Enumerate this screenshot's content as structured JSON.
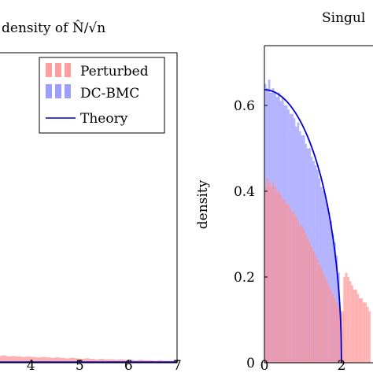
{
  "chart_data": [
    {
      "type": "bar",
      "title": "density of N̂/√n",
      "xlabel": "",
      "ylabel": "",
      "xlim": [
        1.6,
        7.0
      ],
      "ylim": [
        0,
        0.65
      ],
      "x_ticks": [
        "4",
        "5",
        "6",
        "7"
      ],
      "legend": {
        "placement": "top-right",
        "entries": [
          {
            "label": "Perturbed",
            "color": "#ff9e9e"
          },
          {
            "label": "DC-BMC",
            "color": "#9e9eff"
          },
          {
            "label": "Theory",
            "color": "#0000cc"
          }
        ]
      },
      "bin_width": 0.1,
      "series": [
        {
          "name": "Perturbed",
          "x_start": 1.6,
          "values": [
            0.024,
            0.022,
            0.02,
            0.02,
            0.021,
            0.019,
            0.018,
            0.019,
            0.02,
            0.018,
            0.017,
            0.018,
            0.016,
            0.017,
            0.016,
            0.015,
            0.016,
            0.014,
            0.015,
            0.013,
            0.014,
            0.013,
            0.012,
            0.013,
            0.012,
            0.011,
            0.012,
            0.011,
            0.01,
            0.011,
            0.01,
            0.009,
            0.01,
            0.009,
            0.008,
            0.009,
            0.008,
            0.007,
            0.008,
            0.007,
            0.007,
            0.006,
            0.007,
            0.006,
            0.006,
            0.005,
            0.006,
            0.005,
            0.005,
            0.004,
            0.005,
            0.004,
            0.004,
            0.004
          ]
        },
        {
          "name": "Theory",
          "x": [
            1.6,
            7.0
          ],
          "y": [
            0.0,
            0.0
          ]
        }
      ]
    },
    {
      "type": "bar",
      "title": "Singul",
      "xlabel": "",
      "ylabel": "density",
      "xlim": [
        0,
        2.75
      ],
      "ylim": [
        0,
        0.68
      ],
      "x_ticks": [
        "0",
        "2"
      ],
      "y_ticks": [
        "0",
        "0.2",
        "0.4",
        "0.6"
      ],
      "bin_width": 0.05,
      "series": [
        {
          "name": "DC-BMC",
          "x_start": 0.0,
          "values": [
            0.65,
            0.64,
            0.66,
            0.63,
            0.64,
            0.63,
            0.62,
            0.63,
            0.61,
            0.62,
            0.6,
            0.6,
            0.59,
            0.58,
            0.58,
            0.57,
            0.55,
            0.56,
            0.54,
            0.53,
            0.53,
            0.51,
            0.5,
            0.5,
            0.48,
            0.47,
            0.46,
            0.45,
            0.43,
            0.41,
            0.4,
            0.39,
            0.37,
            0.35,
            0.33,
            0.3,
            0.28,
            0.25,
            0.21,
            0.12
          ]
        },
        {
          "name": "Perturbed",
          "x_start": 0.0,
          "values": [
            0.41,
            0.43,
            0.42,
            0.41,
            0.42,
            0.41,
            0.4,
            0.4,
            0.39,
            0.38,
            0.38,
            0.37,
            0.37,
            0.36,
            0.35,
            0.35,
            0.34,
            0.33,
            0.32,
            0.32,
            0.31,
            0.3,
            0.29,
            0.28,
            0.27,
            0.26,
            0.25,
            0.24,
            0.23,
            0.22,
            0.21,
            0.2,
            0.19,
            0.18,
            0.17,
            0.16,
            0.15,
            0.14,
            0.13,
            0.11,
            0.12,
            0.2,
            0.21,
            0.2,
            0.19,
            0.18,
            0.17,
            0.17,
            0.16,
            0.15,
            0.15,
            0.14,
            0.14,
            0.13,
            0.12
          ]
        },
        {
          "name": "Theory",
          "formula": "sqrt(4 - x^2) / pi",
          "x_range": [
            0,
            2
          ]
        }
      ]
    }
  ]
}
